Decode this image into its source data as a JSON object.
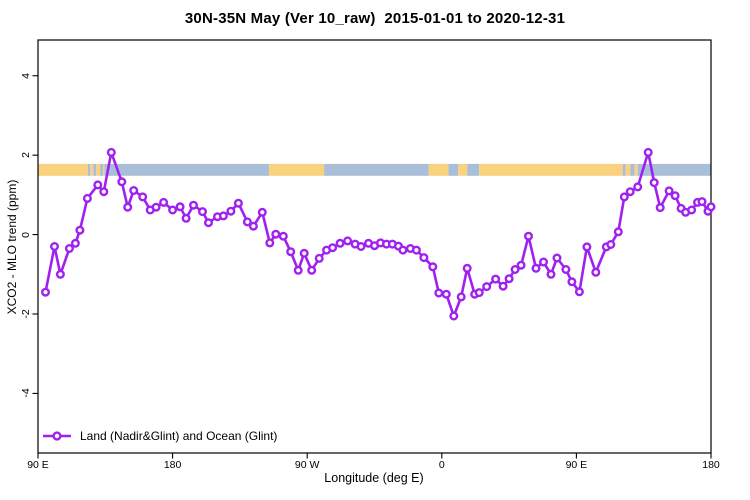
{
  "window": {
    "title": "30N-35N May (Ver 10_raw)  2015-01-01 to 2020-12-31"
  },
  "colors": {
    "series": "#A020F0",
    "marker_fill": "#ffffff",
    "land_band": "#FAD27F",
    "ocean_band": "#A9BFD9",
    "axis": "#000000",
    "background": "#ffffff"
  },
  "legend": {
    "label": "Land (Nadir&Glint) and Ocean (Glint)"
  },
  "chart_data": {
    "type": "line",
    "title": "30N-35N May (Ver 10_raw)  2015-01-01 to 2020-12-31",
    "xlabel": "Longitude (deg E)",
    "ylabel": "XCO2 - MLO trend (ppm)",
    "xlim": [
      90,
      540
    ],
    "ylim": [
      -5.5,
      4.9
    ],
    "grid": false,
    "legend_position": "bottom-left",
    "xticks": [
      {
        "value": 90,
        "label": "90 E"
      },
      {
        "value": 180,
        "label": "180"
      },
      {
        "value": 270,
        "label": "90 W"
      },
      {
        "value": 360,
        "label": "0"
      },
      {
        "value": 450,
        "label": "90 E"
      },
      {
        "value": 540,
        "label": "180"
      }
    ],
    "yticks": [
      {
        "value": 4,
        "label": "4"
      },
      {
        "value": 2,
        "label": "2"
      },
      {
        "value": 0,
        "label": "0"
      },
      {
        "value": -2,
        "label": "-2"
      },
      {
        "value": -4,
        "label": "-4"
      }
    ],
    "surface_band": {
      "description": "land/ocean strip along latitude circle",
      "y_low": 1.48,
      "y_high": 1.78,
      "segments": [
        {
          "from": 90,
          "to": 123.3,
          "type": "land"
        },
        {
          "from": 123.3,
          "to": 125,
          "type": "ocean"
        },
        {
          "from": 125,
          "to": 127,
          "type": "land"
        },
        {
          "from": 127,
          "to": 129,
          "type": "ocean"
        },
        {
          "from": 129,
          "to": 131.5,
          "type": "land"
        },
        {
          "from": 131.5,
          "to": 133.5,
          "type": "ocean"
        },
        {
          "from": 133.5,
          "to": 134.5,
          "type": "land"
        },
        {
          "from": 134.5,
          "to": 244.5,
          "type": "ocean"
        },
        {
          "from": 244.5,
          "to": 281.3,
          "type": "land"
        },
        {
          "from": 281.3,
          "to": 351.3,
          "type": "ocean"
        },
        {
          "from": 351.3,
          "to": 364.5,
          "type": "land"
        },
        {
          "from": 364.5,
          "to": 371,
          "type": "ocean"
        },
        {
          "from": 371,
          "to": 377,
          "type": "land"
        },
        {
          "from": 377,
          "to": 385,
          "type": "ocean"
        },
        {
          "from": 385,
          "to": 481,
          "type": "land"
        },
        {
          "from": 481,
          "to": 483,
          "type": "ocean"
        },
        {
          "from": 483,
          "to": 486,
          "type": "land"
        },
        {
          "from": 486,
          "to": 489,
          "type": "ocean"
        },
        {
          "from": 489,
          "to": 491,
          "type": "land"
        },
        {
          "from": 491,
          "to": 540,
          "type": "ocean"
        }
      ]
    },
    "series": [
      {
        "name": "Land (Nadir&Glint) and Ocean (Glint)",
        "points": [
          [
            95,
            -1.45
          ],
          [
            101,
            -0.3
          ],
          [
            105,
            -1.0
          ],
          [
            111,
            -0.35
          ],
          [
            115,
            -0.22
          ],
          [
            118,
            0.11
          ],
          [
            123,
            0.91
          ],
          [
            130,
            1.25
          ],
          [
            134,
            1.08
          ],
          [
            139,
            2.07
          ],
          [
            146,
            1.33
          ],
          [
            150,
            0.69
          ],
          [
            154,
            1.11
          ],
          [
            160,
            0.95
          ],
          [
            165,
            0.62
          ],
          [
            169,
            0.69
          ],
          [
            174,
            0.81
          ],
          [
            180,
            0.62
          ],
          [
            185,
            0.7
          ],
          [
            189,
            0.41
          ],
          [
            194,
            0.74
          ],
          [
            200,
            0.58
          ],
          [
            204,
            0.3
          ],
          [
            210,
            0.45
          ],
          [
            214,
            0.47
          ],
          [
            219,
            0.59
          ],
          [
            224,
            0.79
          ],
          [
            230,
            0.32
          ],
          [
            234,
            0.21
          ],
          [
            240,
            0.56
          ],
          [
            245,
            -0.21
          ],
          [
            249,
            0.01
          ],
          [
            254,
            -0.04
          ],
          [
            259,
            -0.43
          ],
          [
            264,
            -0.9
          ],
          [
            268,
            -0.47
          ],
          [
            273,
            -0.9
          ],
          [
            278,
            -0.6
          ],
          [
            283,
            -0.39
          ],
          [
            287,
            -0.33
          ],
          [
            292,
            -0.22
          ],
          [
            297,
            -0.16
          ],
          [
            302,
            -0.24
          ],
          [
            306,
            -0.3
          ],
          [
            311,
            -0.22
          ],
          [
            315,
            -0.28
          ],
          [
            319,
            -0.21
          ],
          [
            323,
            -0.24
          ],
          [
            327,
            -0.24
          ],
          [
            331,
            -0.29
          ],
          [
            334,
            -0.39
          ],
          [
            339,
            -0.35
          ],
          [
            343,
            -0.39
          ],
          [
            348,
            -0.58
          ],
          [
            354,
            -0.81
          ],
          [
            358,
            -1.47
          ],
          [
            363,
            -1.5
          ],
          [
            368,
            -2.05
          ],
          [
            373,
            -1.57
          ],
          [
            377,
            -0.85
          ],
          [
            382,
            -1.5
          ],
          [
            385,
            -1.46
          ],
          [
            390,
            -1.31
          ],
          [
            396,
            -1.12
          ],
          [
            401,
            -1.3
          ],
          [
            405,
            -1.11
          ],
          [
            409,
            -0.88
          ],
          [
            413,
            -0.77
          ],
          [
            418,
            -0.04
          ],
          [
            423,
            -0.85
          ],
          [
            428,
            -0.69
          ],
          [
            433,
            -1.0
          ],
          [
            437,
            -0.59
          ],
          [
            443,
            -0.88
          ],
          [
            447,
            -1.19
          ],
          [
            452,
            -1.44
          ],
          [
            457,
            -0.31
          ],
          [
            463,
            -0.95
          ],
          [
            470,
            -0.31
          ],
          [
            473,
            -0.25
          ],
          [
            478,
            0.07
          ],
          [
            482,
            0.95
          ],
          [
            486,
            1.08
          ],
          [
            491,
            1.2
          ],
          [
            498,
            2.07
          ],
          [
            502,
            1.31
          ],
          [
            506,
            0.68
          ],
          [
            512,
            1.1
          ],
          [
            516,
            0.98
          ],
          [
            520,
            0.66
          ],
          [
            523,
            0.56
          ],
          [
            527,
            0.62
          ],
          [
            531,
            0.81
          ],
          [
            534,
            0.83
          ],
          [
            538,
            0.59
          ],
          [
            540,
            0.7
          ]
        ]
      }
    ]
  }
}
